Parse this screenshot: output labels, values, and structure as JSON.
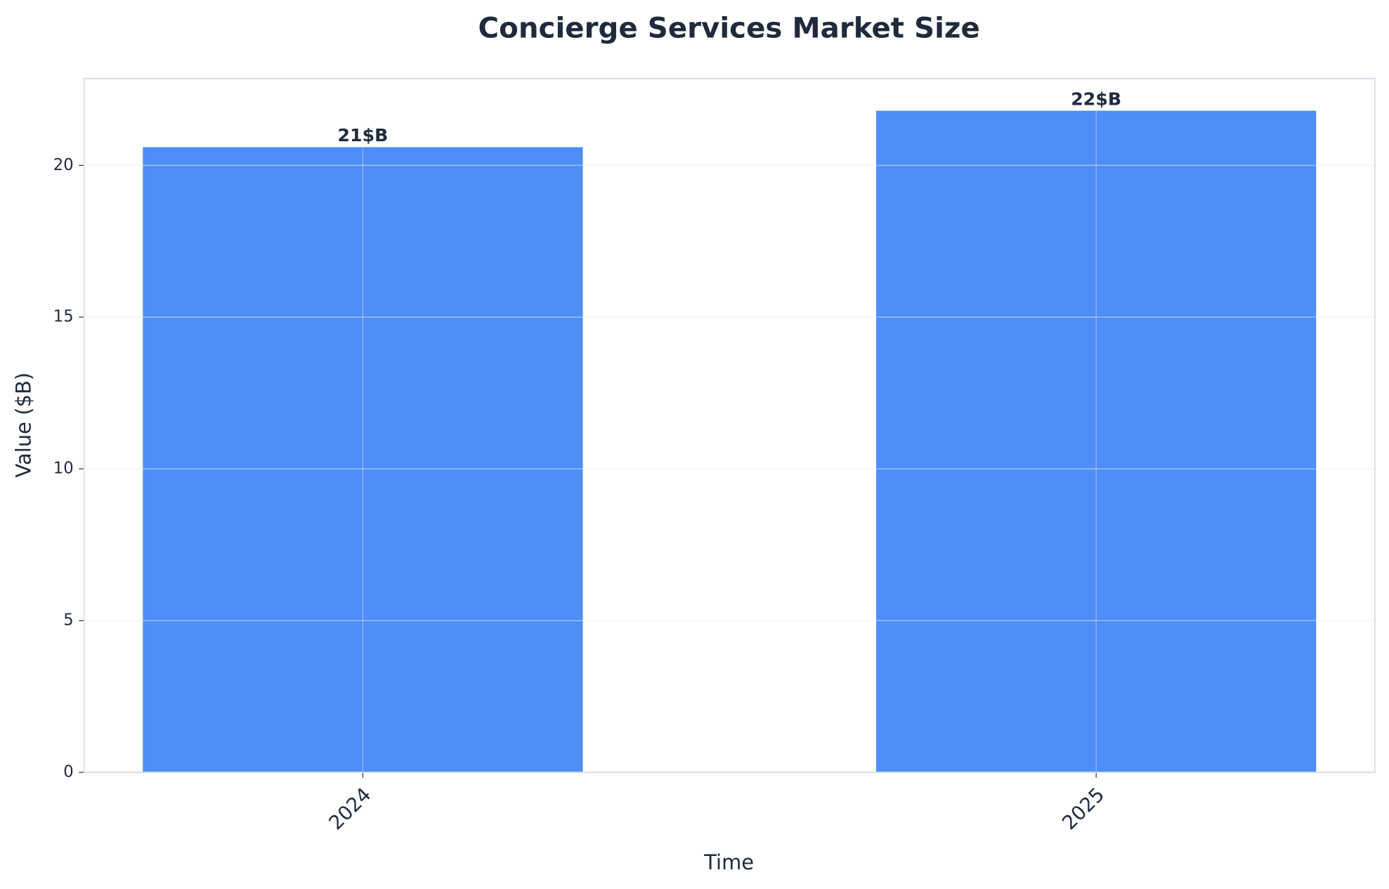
{
  "chart_data": {
    "type": "bar",
    "title": "Concierge Services Market Size",
    "x_label": "Time",
    "y_label": "Value ($B)",
    "categories": [
      "2024",
      "2025"
    ],
    "values": [
      20.6,
      21.8
    ],
    "value_labels": [
      "21$B",
      "22$B"
    ],
    "color": "#4f8ef7",
    "ylim": [
      0,
      22.86
    ],
    "yticks": [
      0,
      5,
      10,
      15,
      20
    ],
    "grid": true
  }
}
